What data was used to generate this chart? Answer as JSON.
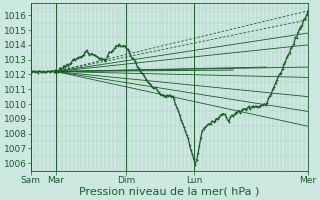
{
  "background_color": "#cce8e0",
  "plot_bg_color": "#cce8e0",
  "grid_color_v": "#a8c8c0",
  "grid_color_h": "#b0d0c8",
  "line_color": "#1a5c28",
  "ylim": [
    1005.5,
    1016.8
  ],
  "yticks": [
    1006,
    1007,
    1008,
    1009,
    1010,
    1011,
    1012,
    1013,
    1014,
    1015,
    1016
  ],
  "xlabel": "Pression niveau de la mer( hPa )",
  "xlabel_fontsize": 8,
  "tick_fontsize": 6.5,
  "xtick_labels": [
    "Sam",
    "Mar",
    "Dim",
    "Lun",
    "Mer"
  ],
  "xtick_positions": [
    0.0,
    0.09,
    0.345,
    0.59,
    1.0
  ]
}
